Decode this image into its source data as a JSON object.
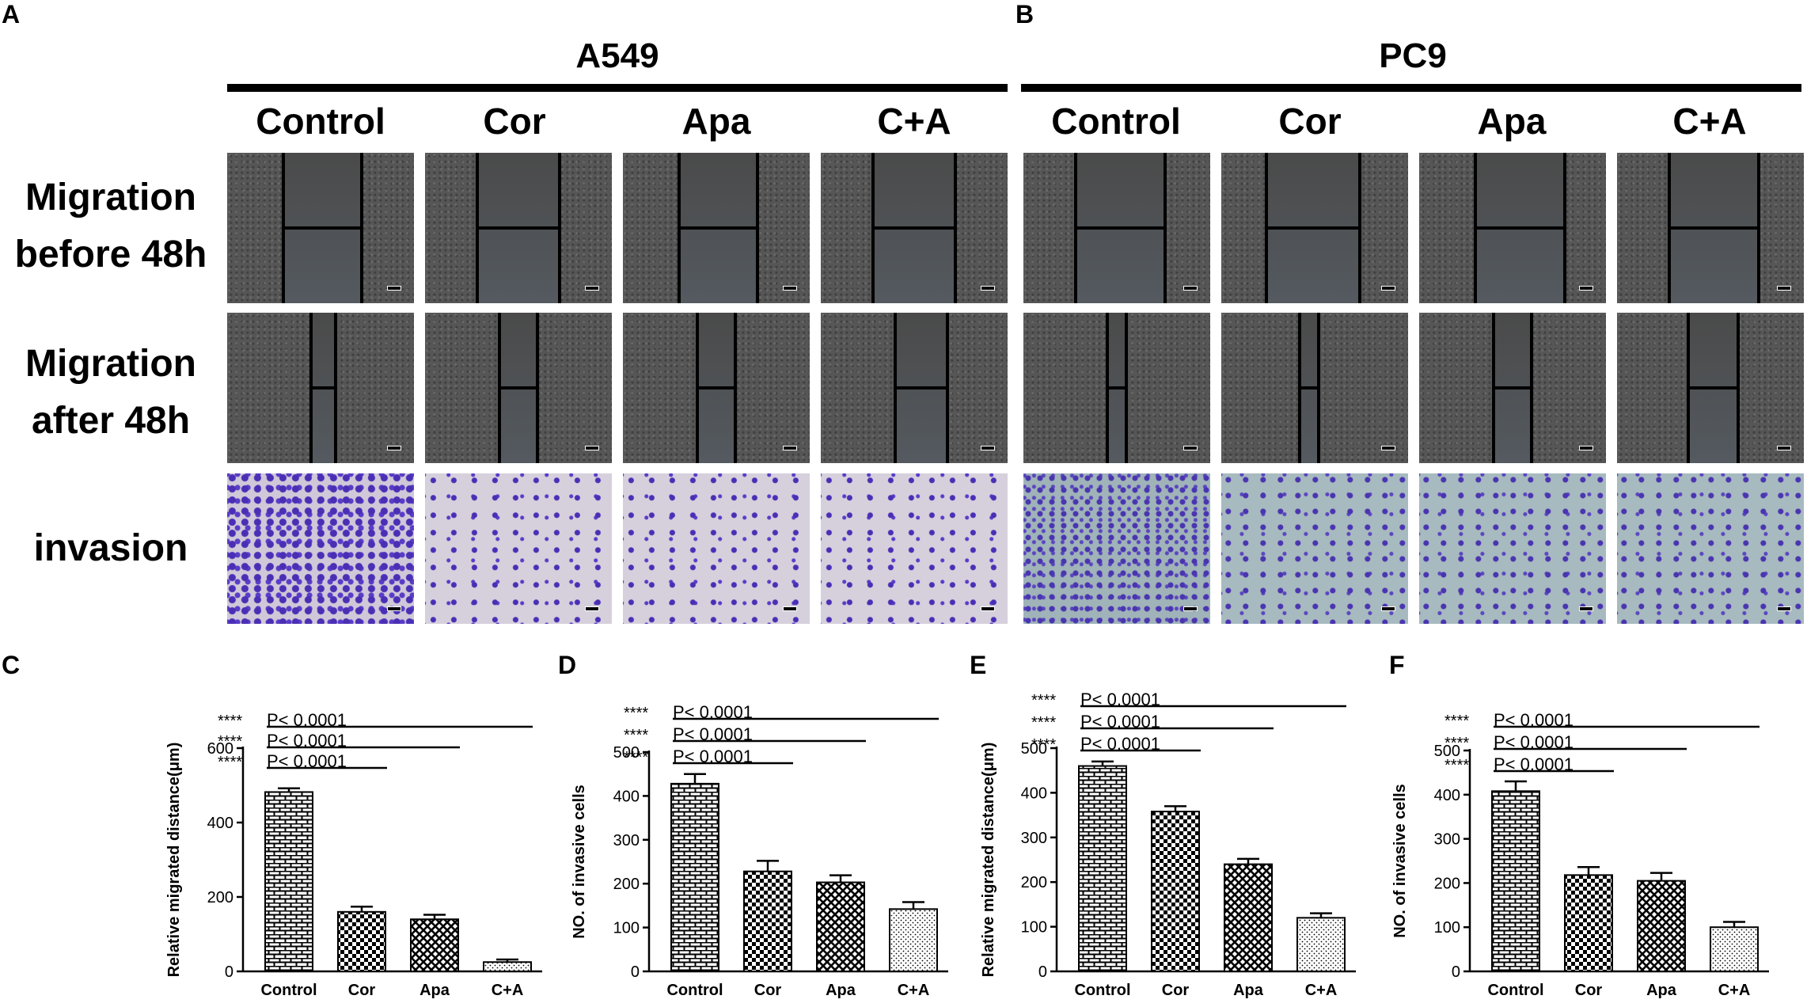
{
  "panel_letters": [
    "A",
    "B",
    "C",
    "D",
    "E",
    "F"
  ],
  "cell_lines": {
    "a": "A549",
    "b": "PC9"
  },
  "conditions": [
    "Control",
    "Cor",
    "Apa",
    "C+A"
  ],
  "row_labels": {
    "row1_line1": "Migration",
    "row1_line2": "before 48h",
    "row2_line1": "Migration",
    "row2_line2": "after 48h",
    "row3": "invasion"
  },
  "colors": {
    "bar_fill": "#ffffff",
    "bar_stroke": "#000000",
    "micro_stain": "#4a2fb5"
  },
  "chart_data": [
    {
      "type": "bar",
      "panel": "C",
      "categories": [
        "Control",
        "Cor",
        "Apa",
        "C+A"
      ],
      "values": [
        482,
        160,
        140,
        25
      ],
      "errors": [
        10,
        14,
        12,
        7
      ],
      "ylabel": "Relative migrated distance(μm)",
      "ylim": [
        0,
        600
      ],
      "yticks": [
        0,
        200,
        400,
        600
      ],
      "patterns": [
        "brick",
        "check",
        "cross",
        "dots"
      ],
      "significance": [
        {
          "stars": "****",
          "text": "P< 0.0001",
          "from": 0,
          "to": 3
        },
        {
          "stars": "****",
          "text": "P< 0.0001",
          "from": 0,
          "to": 2
        },
        {
          "stars": "****",
          "text": "P< 0.0001",
          "from": 0,
          "to": 1
        }
      ]
    },
    {
      "type": "bar",
      "panel": "D",
      "categories": [
        "Control",
        "Cor",
        "Apa",
        "C+A"
      ],
      "values": [
        428,
        228,
        203,
        142
      ],
      "errors": [
        22,
        24,
        16,
        16
      ],
      "ylabel": "NO. of invasive cells",
      "ylim": [
        0,
        500
      ],
      "yticks": [
        0,
        100,
        200,
        300,
        400,
        500
      ],
      "patterns": [
        "brick",
        "check",
        "cross",
        "dots"
      ],
      "significance": [
        {
          "stars": "****",
          "text": "P< 0.0001",
          "from": 0,
          "to": 3
        },
        {
          "stars": "****",
          "text": "P< 0.0001",
          "from": 0,
          "to": 2
        },
        {
          "stars": "****",
          "text": "P< 0.0001",
          "from": 0,
          "to": 1
        }
      ]
    },
    {
      "type": "bar",
      "panel": "E",
      "categories": [
        "Control",
        "Cor",
        "Apa",
        "C+A"
      ],
      "values": [
        460,
        358,
        240,
        120
      ],
      "errors": [
        10,
        12,
        12,
        10
      ],
      "ylabel": "Relative migrated distance(μm)",
      "ylim": [
        0,
        500
      ],
      "yticks": [
        0,
        100,
        200,
        300,
        400,
        500
      ],
      "patterns": [
        "brick",
        "check",
        "cross",
        "dots"
      ],
      "significance": [
        {
          "stars": "****",
          "text": "P< 0.0001",
          "from": 0,
          "to": 3
        },
        {
          "stars": "****",
          "text": "P< 0.0001",
          "from": 0,
          "to": 2
        },
        {
          "stars": "****",
          "text": "P< 0.0001",
          "from": 0,
          "to": 1
        }
      ]
    },
    {
      "type": "bar",
      "panel": "F",
      "categories": [
        "Control",
        "Cor",
        "Apa",
        "C+A"
      ],
      "values": [
        408,
        218,
        205,
        100
      ],
      "errors": [
        22,
        18,
        18,
        12
      ],
      "ylabel": "NO. of invasive cells",
      "ylim": [
        0,
        500
      ],
      "yticks": [
        0,
        100,
        200,
        300,
        400,
        500
      ],
      "patterns": [
        "brick",
        "check",
        "cross",
        "dots"
      ],
      "significance": [
        {
          "stars": "****",
          "text": "P< 0.0001",
          "from": 0,
          "to": 3
        },
        {
          "stars": "****",
          "text": "P< 0.0001",
          "from": 0,
          "to": 2
        },
        {
          "stars": "****",
          "text": "P< 0.0001",
          "from": 0,
          "to": 1
        }
      ]
    }
  ]
}
